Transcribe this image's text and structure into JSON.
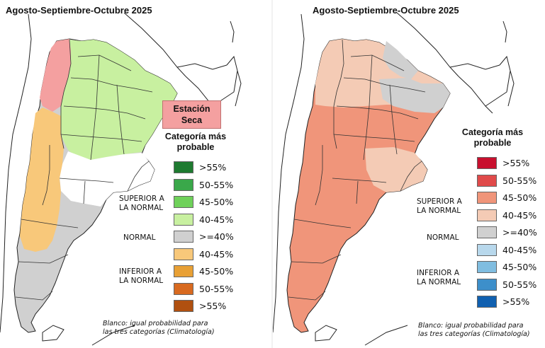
{
  "maps": [
    {
      "title": "Agosto-Septiembre-Octubre 2025",
      "badge": "Estación Seca",
      "legend_title": "Categoría más probable",
      "colors": {
        "dry": "#f4a0a0",
        "wet40": "#c8f0a0",
        "warm40": "#f8c87a",
        "normal": "#d0d0d0",
        "blank": "#ffffff"
      },
      "legend": [
        {
          "label": ">55%",
          "color": "#1e7a30"
        },
        {
          "label": "50-55%",
          "color": "#3aa84a"
        },
        {
          "label": "45-50%",
          "color": "#6fd15a"
        },
        {
          "label": "40-45%",
          "color": "#c8f0a0"
        },
        {
          "label": ">=40%",
          "color": "#d0d0d0"
        },
        {
          "label": "40-45%",
          "color": "#f8c87a"
        },
        {
          "label": "45-50%",
          "color": "#e8a035"
        },
        {
          "label": "50-55%",
          "color": "#d86a20"
        },
        {
          "label": ">55%",
          "color": "#b05010"
        }
      ],
      "groups": {
        "superior": "SUPERIOR A\nLA NORMAL",
        "normal": "NORMAL",
        "inferior": "INFERIOR A\nLA NORMAL"
      },
      "note": "Blanco: igual probabilidad para\nlas tres categorías (Climatología)"
    },
    {
      "title": "Agosto-Septiembre-Octubre 2025",
      "legend_title": "Categoría más probable",
      "colors": {
        "high": "#f0957a",
        "low": "#f4cbb5",
        "normal": "#d0d0d0"
      },
      "legend": [
        {
          "label": ">55%",
          "color": "#c8102e"
        },
        {
          "label": "50-55%",
          "color": "#e04a4a"
        },
        {
          "label": "45-50%",
          "color": "#f0957a"
        },
        {
          "label": "40-45%",
          "color": "#f4cbb5"
        },
        {
          "label": ">=40%",
          "color": "#d0d0d0"
        },
        {
          "label": "40-45%",
          "color": "#b8d8ec"
        },
        {
          "label": "45-50%",
          "color": "#80bde0"
        },
        {
          "label": "50-55%",
          "color": "#3d8fca"
        },
        {
          "label": ">55%",
          "color": "#1060b0"
        }
      ],
      "groups": {
        "superior": "SUPERIOR A\nLA NORMAL",
        "normal": "NORMAL",
        "inferior": "INFERIOR A\nLA NORMAL"
      },
      "note": "Blanco: igual probabilidad para\nlas tres categorías (Climatología)"
    }
  ]
}
